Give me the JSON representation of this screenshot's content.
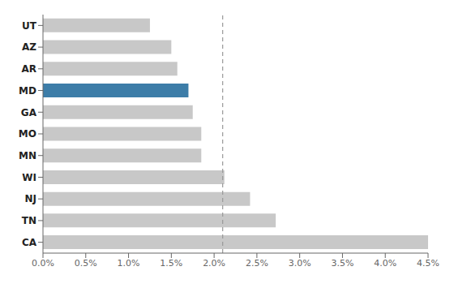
{
  "chart_data": {
    "type": "bar",
    "orientation": "horizontal",
    "categories": [
      "CA",
      "TN",
      "NJ",
      "WI",
      "MN",
      "MO",
      "GA",
      "MD",
      "AR",
      "AZ",
      "UT"
    ],
    "values": [
      4.5,
      2.72,
      2.42,
      2.12,
      1.85,
      1.85,
      1.75,
      1.7,
      1.57,
      1.5,
      1.25
    ],
    "colors": [
      "#c8c8c8",
      "#c8c8c8",
      "#c8c8c8",
      "#c8c8c8",
      "#c8c8c8",
      "#c8c8c8",
      "#c8c8c8",
      "#3d7da8",
      "#c8c8c8",
      "#c8c8c8",
      "#c8c8c8"
    ],
    "xlim": [
      0,
      4.5
    ],
    "xticks": [
      {
        "value": 0.0,
        "label": "0.0%"
      },
      {
        "value": 0.5,
        "label": "0.5%"
      },
      {
        "value": 1.0,
        "label": "1.0%"
      },
      {
        "value": 1.5,
        "label": "1.5%"
      },
      {
        "value": 2.0,
        "label": "2.0%"
      },
      {
        "value": 2.5,
        "label": "2.5%"
      },
      {
        "value": 3.0,
        "label": "3.0%"
      },
      {
        "value": 3.5,
        "label": "3.5%"
      },
      {
        "value": 4.0,
        "label": "4.0%"
      },
      {
        "value": 4.5,
        "label": "4.5%"
      }
    ],
    "reference_line": {
      "x": 2.1,
      "color": "#999999",
      "line_style": "dashed"
    },
    "grid": false
  }
}
